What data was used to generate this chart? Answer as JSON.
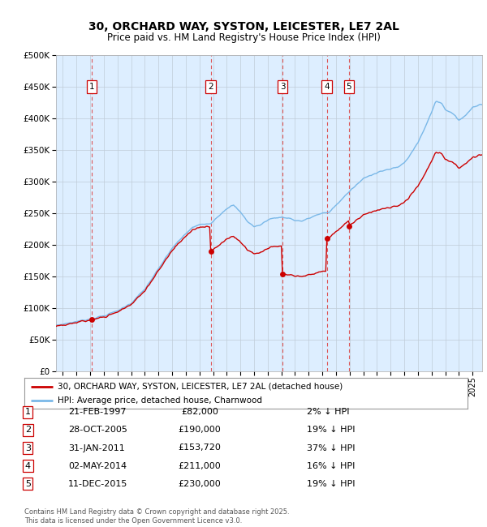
{
  "title": "30, ORCHARD WAY, SYSTON, LEICESTER, LE7 2AL",
  "subtitle": "Price paid vs. HM Land Registry's House Price Index (HPI)",
  "background_color": "#ddeeff",
  "hpi_color": "#7ab8e8",
  "price_color": "#cc0000",
  "grid_color": "#c0ccd8",
  "dashed_line_color": "#dd4444",
  "purchases": [
    {
      "label": "1",
      "date_str": "21-FEB-1997",
      "date_num": 1997.13,
      "price": 82000,
      "hpi_pct": "2% ↓ HPI"
    },
    {
      "label": "2",
      "date_str": "28-OCT-2005",
      "date_num": 2005.83,
      "price": 190000,
      "hpi_pct": "19% ↓ HPI"
    },
    {
      "label": "3",
      "date_str": "31-JAN-2011",
      "date_num": 2011.08,
      "price": 153720,
      "hpi_pct": "37% ↓ HPI"
    },
    {
      "label": "4",
      "date_str": "02-MAY-2014",
      "date_num": 2014.33,
      "price": 211000,
      "hpi_pct": "16% ↓ HPI"
    },
    {
      "label": "5",
      "date_str": "11-DEC-2015",
      "date_num": 2015.94,
      "price": 230000,
      "hpi_pct": "19% ↓ HPI"
    }
  ],
  "legend_line1": "30, ORCHARD WAY, SYSTON, LEICESTER, LE7 2AL (detached house)",
  "legend_line2": "HPI: Average price, detached house, Charnwood",
  "footnote": "Contains HM Land Registry data © Crown copyright and database right 2025.\nThis data is licensed under the Open Government Licence v3.0.",
  "ylim": [
    0,
    500000
  ],
  "yticks": [
    0,
    50000,
    100000,
    150000,
    200000,
    250000,
    300000,
    350000,
    400000,
    450000,
    500000
  ],
  "xlim_start": 1994.5,
  "xlim_end": 2025.7
}
